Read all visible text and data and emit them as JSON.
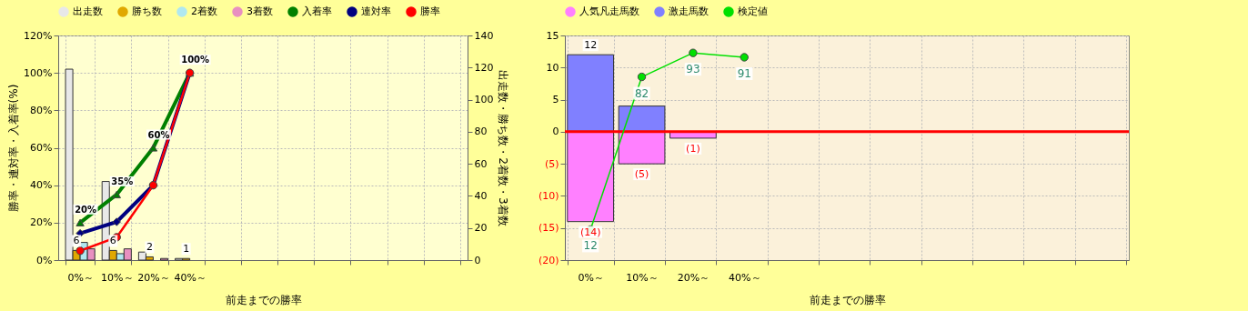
{
  "chart_data": [
    {
      "type": "bar",
      "xlabel": "前走までの勝率",
      "ylabel": "勝率・連対率・入着率(%)",
      "y2label": "出走数・勝ち数・2着数・3着数",
      "categories": [
        "0%～",
        "10%～",
        "20%～",
        "40%～",
        null,
        null,
        null,
        null,
        null,
        null,
        null
      ],
      "series": [
        {
          "name": "出走数",
          "color": "#e8e8e8",
          "axis": "y2",
          "values": [
            119,
            49,
            5,
            1,
            null,
            null,
            null,
            null,
            null,
            null,
            null
          ]
        },
        {
          "name": "勝ち数",
          "color": "#e0a800",
          "axis": "y2",
          "values": [
            6,
            6,
            2,
            1,
            null,
            null,
            null,
            null,
            null,
            null,
            null
          ],
          "value_labels": [
            "6",
            "6",
            "2",
            "1",
            null,
            null,
            null,
            null,
            null,
            null,
            null
          ]
        },
        {
          "name": "2着数",
          "color": "#b0e8f0",
          "axis": "y2",
          "values": [
            11,
            4,
            0,
            0,
            null,
            null,
            null,
            null,
            null,
            null,
            null
          ]
        },
        {
          "name": "3着数",
          "color": "#e890c0",
          "axis": "y2",
          "values": [
            7,
            7,
            1,
            0,
            null,
            null,
            null,
            null,
            null,
            null,
            null
          ]
        },
        {
          "name": "入着率",
          "type": "line",
          "color": "#008000",
          "marker": "triangle",
          "values": [
            20,
            35,
            60,
            100,
            null,
            null,
            null,
            null,
            null,
            null,
            null
          ],
          "value_labels": [
            "20%",
            "35%",
            "60%",
            "100%",
            null,
            null,
            null,
            null,
            null,
            null,
            null
          ]
        },
        {
          "name": "連対率",
          "type": "line",
          "color": "#000080",
          "marker": "diamond",
          "values": [
            14.3,
            20.4,
            40,
            100,
            null,
            null,
            null,
            null,
            null,
            null,
            null
          ]
        },
        {
          "name": "勝率",
          "type": "line",
          "color": "#ff0000",
          "marker": "circle",
          "values": [
            5.0,
            12.2,
            40,
            100,
            null,
            null,
            null,
            null,
            null,
            null,
            null
          ]
        }
      ],
      "ylim": [
        0,
        120
      ],
      "yticks": [
        {
          "value": 0,
          "label": "0%"
        },
        {
          "value": 20,
          "label": "20%"
        },
        {
          "value": 40,
          "label": "40%"
        },
        {
          "value": 60,
          "label": "60%"
        },
        {
          "value": 80,
          "label": "80%"
        },
        {
          "value": 100,
          "label": "100%"
        },
        {
          "value": 120,
          "label": "120%"
        }
      ],
      "y2lim": [
        0,
        140
      ],
      "y2ticks": [
        0,
        20,
        40,
        60,
        80,
        100,
        120,
        140
      ],
      "grid": true,
      "legend": "top"
    },
    {
      "type": "bar",
      "stacked": true,
      "xlabel": "前走までの勝率",
      "categories": [
        "0%～",
        "10%～",
        "20%～",
        "40%～",
        null,
        null,
        null,
        null,
        null,
        null,
        null
      ],
      "series": [
        {
          "name": "人気凡走馬数",
          "color": "#ff80ff",
          "values": [
            -14,
            -5,
            -1,
            null,
            null,
            null,
            null,
            null,
            null,
            null,
            null
          ],
          "value_labels": [
            "(14)",
            "(5)",
            "(1)",
            null,
            null,
            null,
            null,
            null,
            null,
            null,
            null
          ]
        },
        {
          "name": "激走馬数",
          "color": "#8080ff",
          "values": [
            12,
            4,
            null,
            null,
            null,
            null,
            null,
            null,
            null,
            null,
            null
          ],
          "value_labels": [
            "12",
            null,
            null,
            null,
            null,
            null,
            null,
            null,
            null,
            null,
            null
          ]
        },
        {
          "name": "検定値",
          "type": "line",
          "axis": "y2",
          "color": "#00e000",
          "marker": "circle",
          "values": [
            12,
            82,
            93,
            91,
            null,
            null,
            null,
            null,
            null,
            null,
            null
          ],
          "value_labels": [
            "12",
            "82",
            "93",
            "91",
            null,
            null,
            null,
            null,
            null,
            null,
            null
          ]
        }
      ],
      "ylim": [
        -20,
        15
      ],
      "yticks": [
        {
          "value": -20,
          "label": "(20)"
        },
        {
          "value": -15,
          "label": "(15)"
        },
        {
          "value": -10,
          "label": "(10)"
        },
        {
          "value": -5,
          "label": "(5)"
        },
        0,
        5,
        10,
        15
      ],
      "y2lim": [
        -2,
        101
      ],
      "ref_lines": [
        {
          "axis": "y",
          "value": 0,
          "color": "#ff0000"
        }
      ],
      "grid": true,
      "legend": "top"
    }
  ]
}
